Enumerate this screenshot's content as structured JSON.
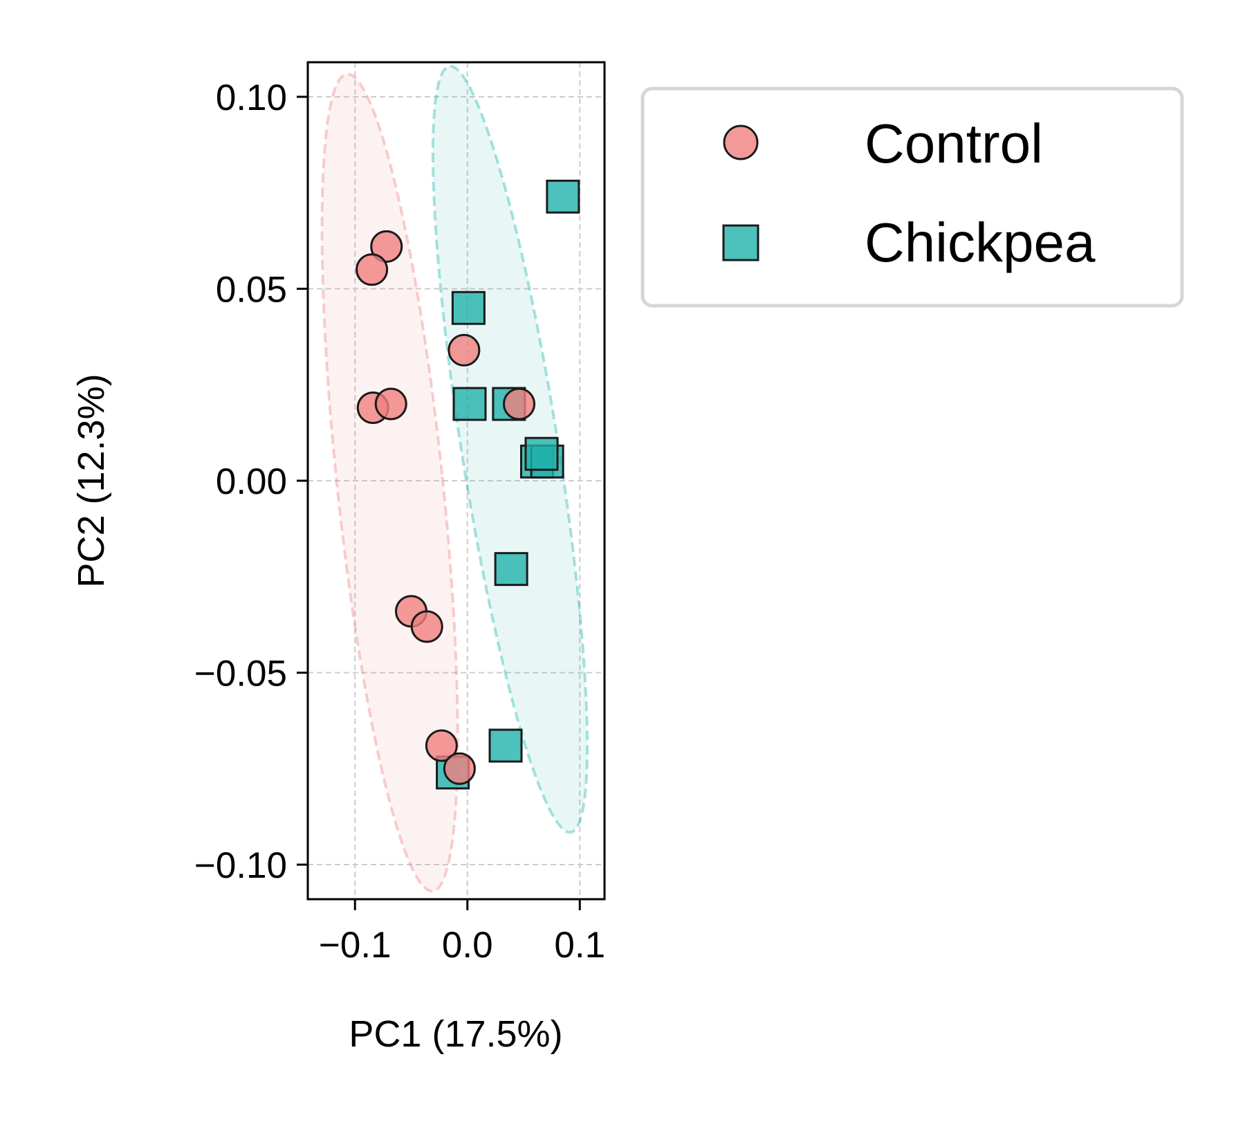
{
  "colors": {
    "control": "#F08080",
    "chickpea": "#20B2AA",
    "marker_edge": "#1a1a1a",
    "grid": "#cccccc",
    "axis": "#000000",
    "legend_border": "#d6d6d6"
  },
  "legend": {
    "location": "outside upper right",
    "entries": [
      {
        "label": "Control",
        "marker": "circle",
        "series": "control"
      },
      {
        "label": "Chickpea",
        "marker": "square",
        "series": "chickpea"
      }
    ]
  },
  "chart_data": {
    "type": "scatter",
    "xlabel": "PC1 (17.5%)",
    "ylabel": "PC2 (12.3%)",
    "xlim": [
      -0.142,
      0.122
    ],
    "ylim": [
      -0.109,
      0.109
    ],
    "xticks": [
      -0.1,
      0.0,
      0.1
    ],
    "xtick_labels": [
      "−0.1",
      "0.0",
      "0.1"
    ],
    "yticks": [
      0.1,
      0.05,
      0.0,
      -0.05,
      -0.1
    ],
    "ytick_labels": [
      "0.10",
      "0.05",
      "0.00",
      "−0.05",
      "−0.10"
    ],
    "grid": true,
    "grid_style": "dashed",
    "series": [
      {
        "name": "Control",
        "key": "control",
        "marker": "circle",
        "points": [
          {
            "x": -0.072,
            "y": 0.061
          },
          {
            "x": -0.085,
            "y": 0.055
          },
          {
            "x": -0.003,
            "y": 0.034
          },
          {
            "x": -0.084,
            "y": 0.019
          },
          {
            "x": -0.068,
            "y": 0.02
          },
          {
            "x": 0.046,
            "y": 0.02
          },
          {
            "x": -0.05,
            "y": -0.034
          },
          {
            "x": -0.036,
            "y": -0.038
          },
          {
            "x": -0.023,
            "y": -0.069
          },
          {
            "x": -0.007,
            "y": -0.075
          }
        ],
        "ellipse": {
          "cx": -0.069,
          "cy": -0.0005,
          "rx": 0.047,
          "ry": 0.107,
          "angle_deg": -6
        }
      },
      {
        "name": "Chickpea",
        "key": "chickpea",
        "marker": "square",
        "points": [
          {
            "x": 0.085,
            "y": 0.074
          },
          {
            "x": 0.001,
            "y": 0.045
          },
          {
            "x": 0.002,
            "y": 0.02
          },
          {
            "x": 0.037,
            "y": 0.02
          },
          {
            "x": 0.062,
            "y": 0.005
          },
          {
            "x": 0.071,
            "y": 0.005
          },
          {
            "x": 0.066,
            "y": 0.007
          },
          {
            "x": 0.039,
            "y": -0.023
          },
          {
            "x": 0.034,
            "y": -0.069
          },
          {
            "x": -0.013,
            "y": -0.076
          }
        ],
        "ellipse": {
          "cx": 0.038,
          "cy": 0.0082,
          "rx": 0.043,
          "ry": 0.101,
          "angle_deg": -9
        }
      }
    ]
  }
}
